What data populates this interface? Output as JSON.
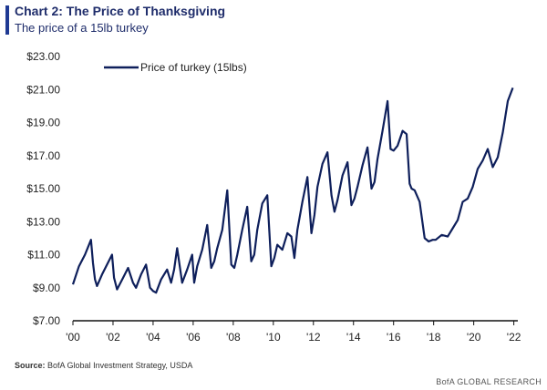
{
  "header": {
    "title": "Chart 2: The Price of Thanksgiving",
    "subtitle": "The price of a 15lb turkey"
  },
  "source": {
    "label": "Source:",
    "text": "BofA Global Investment Strategy, USDA"
  },
  "footer": {
    "brand": "BofA GLOBAL RESEARCH"
  },
  "colors": {
    "line": "#0e1f5b",
    "accent": "#1f3a93"
  },
  "chart_data": {
    "type": "line",
    "xlabel": "",
    "ylabel": "",
    "ylim": [
      7,
      23
    ],
    "xlim": [
      2000,
      2022.2
    ],
    "y_ticks": [
      7,
      9,
      11,
      13,
      15,
      17,
      19,
      21,
      23
    ],
    "y_tick_labels": [
      "$7.00",
      "$9.00",
      "$11.00",
      "$13.00",
      "$15.00",
      "$17.00",
      "$19.00",
      "$21.00",
      "$23.00"
    ],
    "x_ticks": [
      2000,
      2002,
      2004,
      2006,
      2008,
      2010,
      2012,
      2014,
      2016,
      2018,
      2020,
      2022
    ],
    "x_tick_labels": [
      "'00",
      "'02",
      "'04",
      "'06",
      "'08",
      "'10",
      "'12",
      "'14",
      "'16",
      "'18",
      "'20",
      "'22"
    ],
    "grid": false,
    "legend_position": "top-left",
    "series": [
      {
        "name": "Price of turkey (15lbs)",
        "x": [
          2000.0,
          2000.3,
          2000.6,
          2000.9,
          2001.0,
          2001.1,
          2001.2,
          2001.45,
          2001.7,
          2001.95,
          2002.05,
          2002.2,
          2002.5,
          2002.75,
          2003.0,
          2003.15,
          2003.4,
          2003.65,
          2003.85,
          2004.0,
          2004.15,
          2004.4,
          2004.7,
          2004.9,
          2005.05,
          2005.2,
          2005.45,
          2005.7,
          2005.95,
          2006.05,
          2006.2,
          2006.45,
          2006.7,
          2006.9,
          2007.05,
          2007.2,
          2007.45,
          2007.7,
          2007.9,
          2008.05,
          2008.2,
          2008.45,
          2008.7,
          2008.9,
          2009.05,
          2009.2,
          2009.45,
          2009.7,
          2009.9,
          2010.05,
          2010.2,
          2010.45,
          2010.7,
          2010.9,
          2011.05,
          2011.2,
          2011.45,
          2011.7,
          2011.9,
          2012.05,
          2012.2,
          2012.45,
          2012.7,
          2012.9,
          2013.05,
          2013.2,
          2013.45,
          2013.7,
          2013.9,
          2014.05,
          2014.2,
          2014.45,
          2014.7,
          2014.9,
          2015.05,
          2015.2,
          2015.45,
          2015.7,
          2015.85,
          2016.0,
          2016.2,
          2016.45,
          2016.65,
          2016.8,
          2016.9,
          2017.05,
          2017.3,
          2017.55,
          2017.75,
          2017.95,
          2018.1,
          2018.4,
          2018.7,
          2018.95,
          2019.2,
          2019.45,
          2019.7,
          2019.95,
          2020.2,
          2020.45,
          2020.7,
          2020.95,
          2021.2,
          2021.45,
          2021.7,
          2021.95
        ],
        "values": [
          9.2,
          10.3,
          11.0,
          11.9,
          10.5,
          9.5,
          9.1,
          9.8,
          10.4,
          11.0,
          9.6,
          8.9,
          9.6,
          10.2,
          9.3,
          9.0,
          9.8,
          10.4,
          9.0,
          8.8,
          8.7,
          9.5,
          10.1,
          9.3,
          10.1,
          11.4,
          9.3,
          10.1,
          11.0,
          9.3,
          10.3,
          11.3,
          12.8,
          10.2,
          10.6,
          11.4,
          12.5,
          14.9,
          10.4,
          10.2,
          11.0,
          12.5,
          13.9,
          10.6,
          11.0,
          12.5,
          14.1,
          14.6,
          10.3,
          10.8,
          11.6,
          11.3,
          12.3,
          12.1,
          10.8,
          12.5,
          14.2,
          15.7,
          12.3,
          13.4,
          15.1,
          16.5,
          17.2,
          14.6,
          13.6,
          14.3,
          15.8,
          16.6,
          14.0,
          14.4,
          15.1,
          16.4,
          17.5,
          15.0,
          15.4,
          16.8,
          18.5,
          20.3,
          17.4,
          17.3,
          17.6,
          18.5,
          18.3,
          15.3,
          15.0,
          14.9,
          14.2,
          12.0,
          11.8,
          11.9,
          11.9,
          12.2,
          12.1,
          12.6,
          13.1,
          14.2,
          14.4,
          15.1,
          16.2,
          16.7,
          17.4,
          16.3,
          16.9,
          18.4,
          20.3,
          21.1
        ]
      }
    ]
  }
}
